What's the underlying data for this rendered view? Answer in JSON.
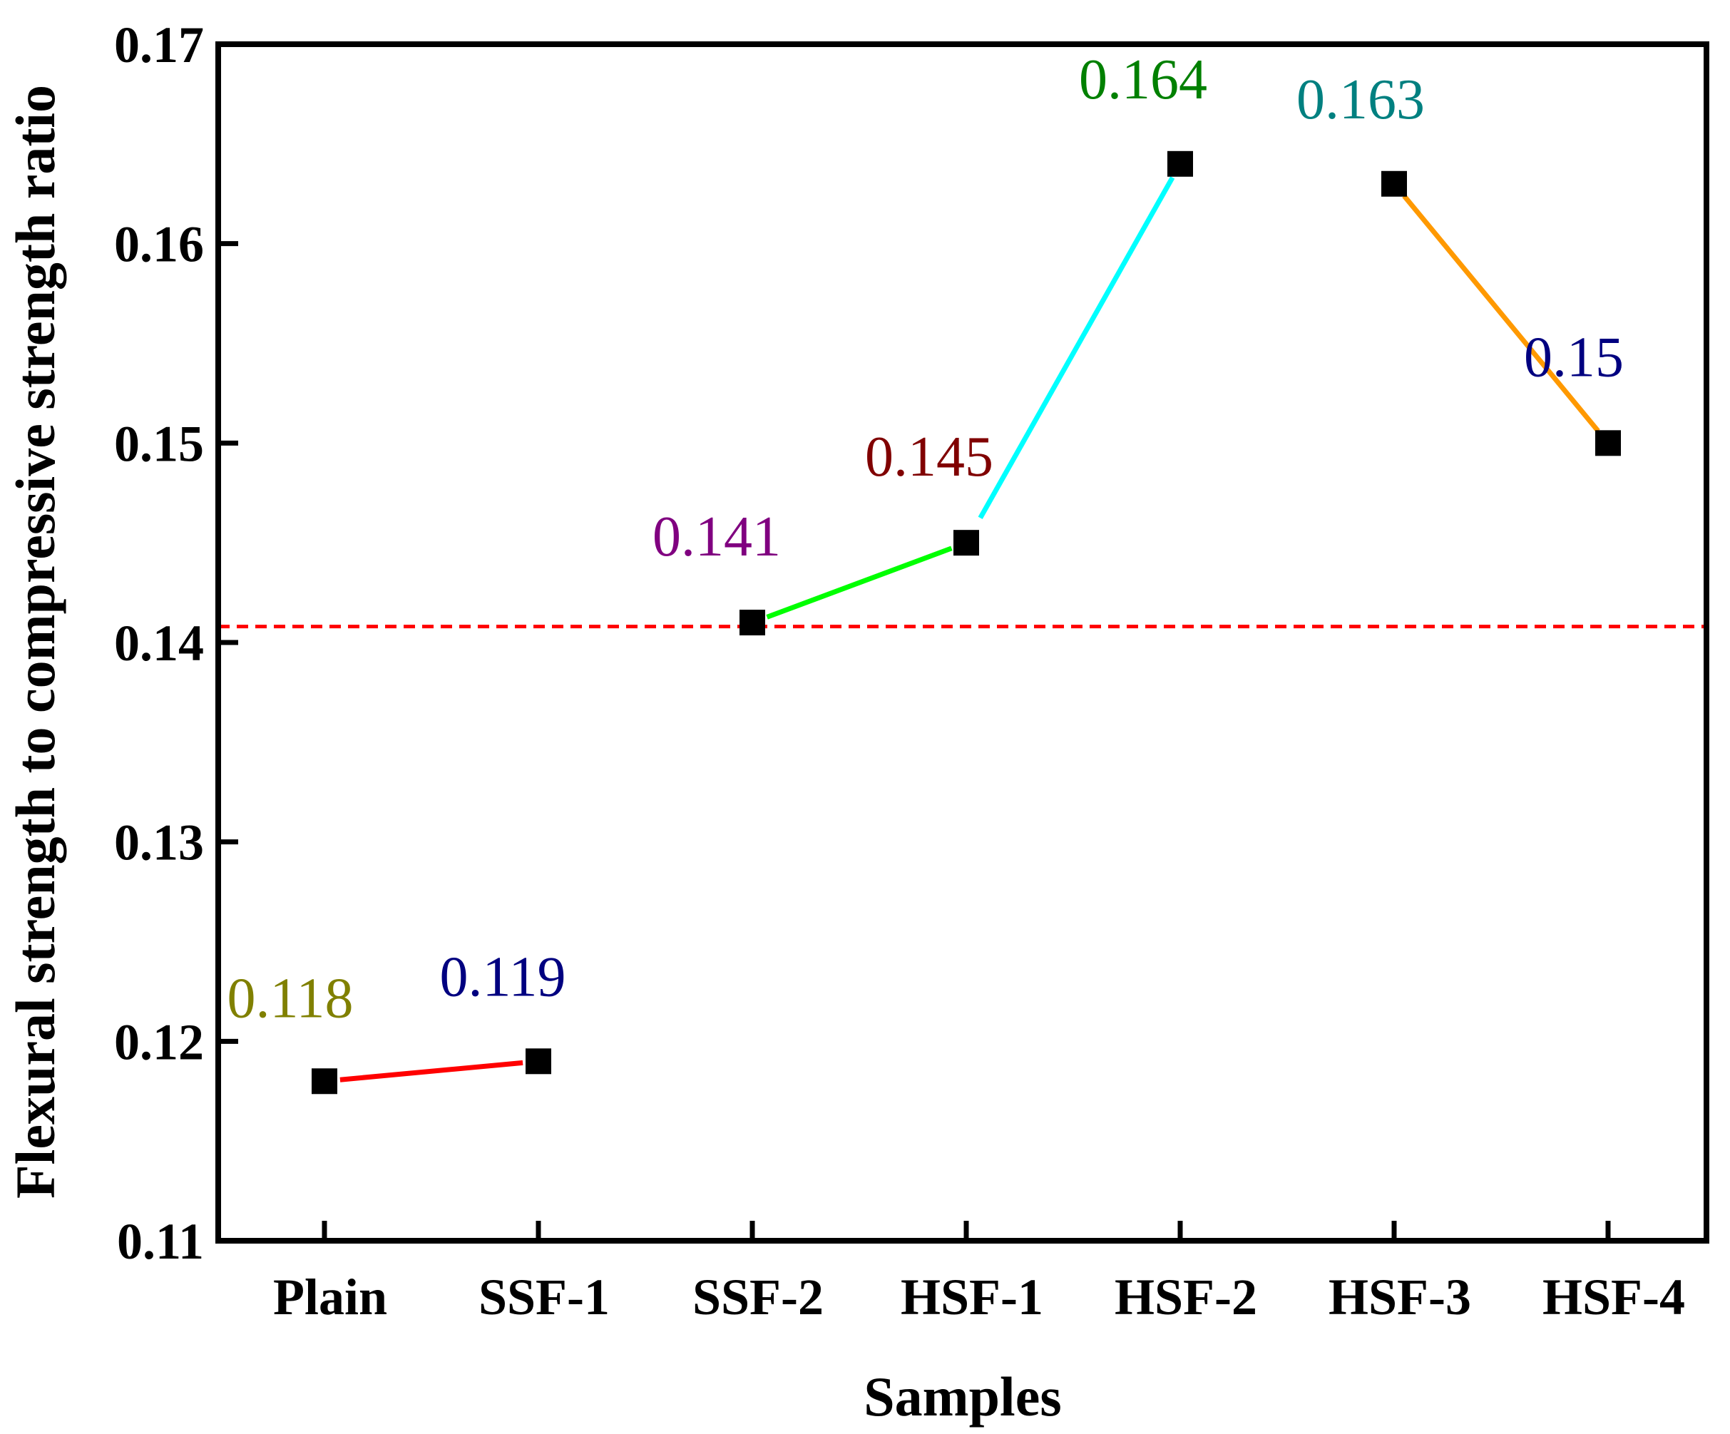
{
  "chart_data": {
    "type": "line",
    "title": "",
    "xlabel": "Samples",
    "ylabel": "Flexural strength to compressive strength ratio",
    "categories": [
      "Plain",
      "SSF-1",
      "SSF-2",
      "HSF-1",
      "HSF-2",
      "HSF-3",
      "HSF-4"
    ],
    "values": [
      0.118,
      0.119,
      0.141,
      0.145,
      0.164,
      0.163,
      0.15
    ],
    "data_labels": [
      "0.118",
      "0.119",
      "0.141",
      "0.145",
      "0.164",
      "0.163",
      "0.15"
    ],
    "label_colors": [
      "#808000",
      "#000080",
      "#800080",
      "#800000",
      "#008000",
      "#008080",
      "#000080"
    ],
    "segments": [
      {
        "from": 0,
        "to": 1,
        "color": "#ff0000"
      },
      {
        "from": 2,
        "to": 3,
        "color": "#00ff00"
      },
      {
        "from": 3,
        "to": 4,
        "color": "#00ffff"
      },
      {
        "from": 5,
        "to": 6,
        "color": "#ff9900"
      }
    ],
    "reference_line": {
      "y": 0.1408,
      "color": "#ff0000",
      "style": "dashed"
    },
    "ylim": [
      0.11,
      0.17
    ],
    "yticks": [
      0.11,
      0.12,
      0.13,
      0.14,
      0.15,
      0.16,
      0.17
    ],
    "ytick_labels": [
      "0.11",
      "0.12",
      "0.13",
      "0.14",
      "0.15",
      "0.16",
      "0.17"
    ],
    "marker": "square",
    "marker_color": "#000000",
    "grid": false,
    "legend": "none"
  }
}
